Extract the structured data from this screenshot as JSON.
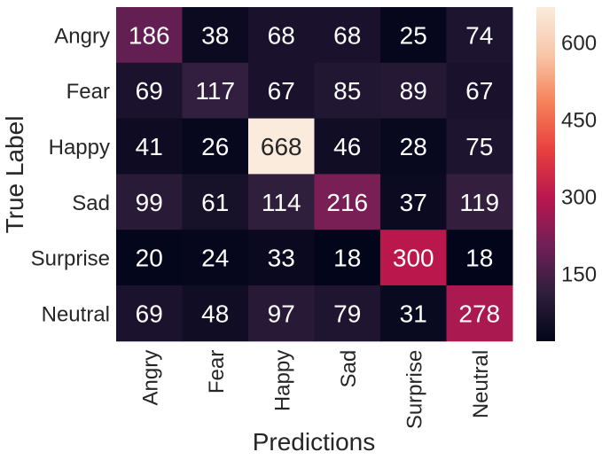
{
  "chart_data": {
    "type": "heatmap",
    "title": "",
    "xlabel": "Predictions",
    "ylabel": "True Label",
    "x_categories": [
      "Angry",
      "Fear",
      "Happy",
      "Sad",
      "Surprise",
      "Neutral"
    ],
    "y_categories": [
      "Angry",
      "Fear",
      "Happy",
      "Sad",
      "Surprise",
      "Neutral"
    ],
    "values": [
      [
        186,
        38,
        68,
        68,
        25,
        74
      ],
      [
        69,
        117,
        67,
        85,
        89,
        67
      ],
      [
        41,
        26,
        668,
        46,
        28,
        75
      ],
      [
        99,
        61,
        114,
        216,
        37,
        119
      ],
      [
        20,
        24,
        33,
        18,
        300,
        18
      ],
      [
        69,
        48,
        97,
        79,
        31,
        278
      ]
    ],
    "colorbar": {
      "min": 18,
      "max": 668,
      "ticks": [
        150,
        300,
        450,
        600
      ],
      "colormap": "rocket",
      "colors": [
        "#03051a",
        "#2e1e3c",
        "#711f57",
        "#b8174e",
        "#e83f3f",
        "#f6815a",
        "#f8c6a7",
        "#faebdd"
      ]
    }
  }
}
